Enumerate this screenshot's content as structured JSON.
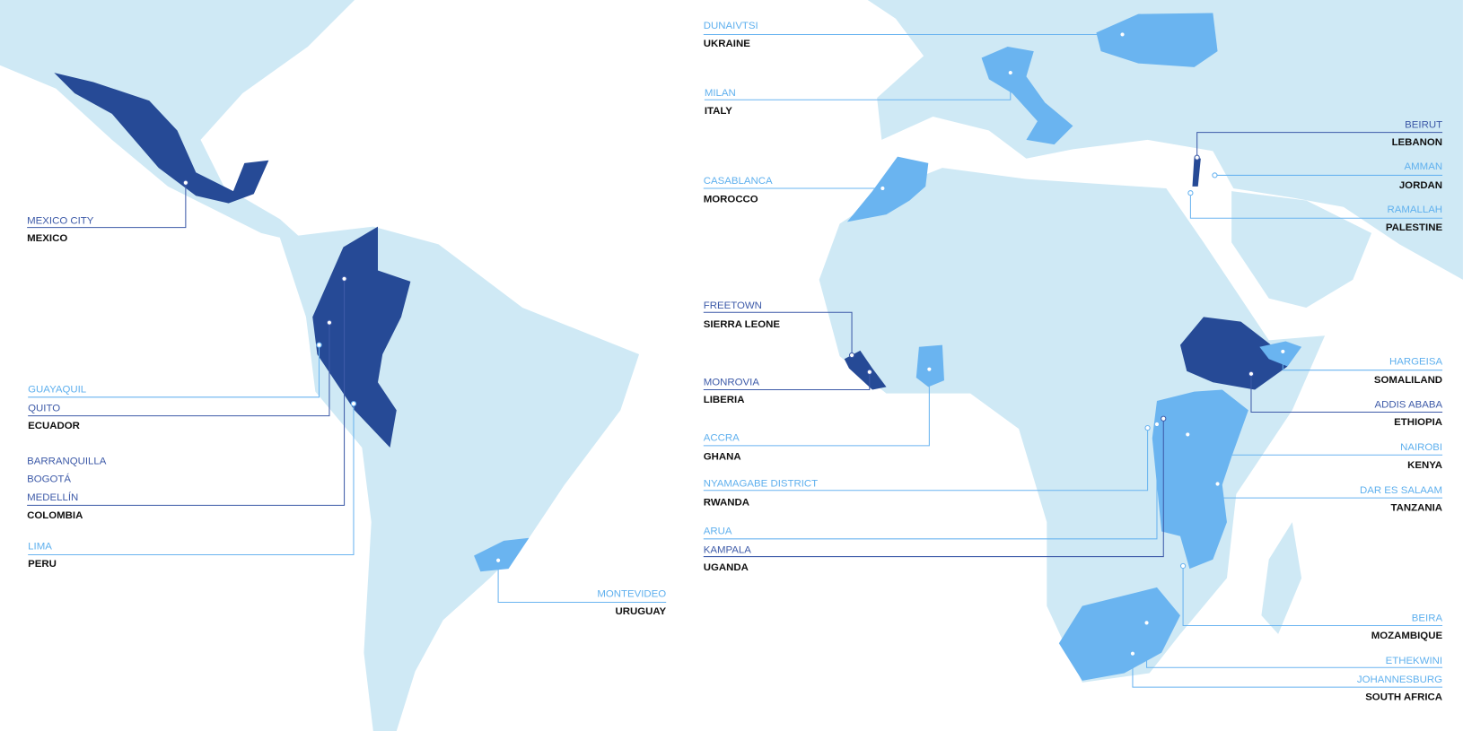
{
  "regions": [
    {
      "cities": [
        "MEXICO CITY"
      ],
      "country": "MEXICO"
    },
    {
      "cities": [
        "GUAYAQUIL",
        "QUITO"
      ],
      "country": "ECUADOR"
    },
    {
      "cities": [
        "BARRANQUILLA",
        "BOGOTÁ",
        "MEDELLÍN"
      ],
      "country": "COLOMBIA"
    },
    {
      "cities": [
        "LIMA"
      ],
      "country": "PERU"
    },
    {
      "cities": [
        "MONTEVIDEO"
      ],
      "country": "URUGUAY"
    },
    {
      "cities": [
        "DUNAIVTSI"
      ],
      "country": "UKRAINE"
    },
    {
      "cities": [
        "MILAN"
      ],
      "country": "ITALY"
    },
    {
      "cities": [
        "CASABLANCA"
      ],
      "country": "MOROCCO"
    },
    {
      "cities": [
        "BEIRUT"
      ],
      "country": "LEBANON"
    },
    {
      "cities": [
        "AMMAN"
      ],
      "country": "JORDAN"
    },
    {
      "cities": [
        "RAMALLAH"
      ],
      "country": "PALESTINE"
    },
    {
      "cities": [
        "FREETOWN"
      ],
      "country": "SIERRA LEONE"
    },
    {
      "cities": [
        "MONROVIA"
      ],
      "country": "LIBERIA"
    },
    {
      "cities": [
        "ACCRA"
      ],
      "country": "GHANA"
    },
    {
      "cities": [
        "HARGEISA"
      ],
      "country": "SOMALILAND"
    },
    {
      "cities": [
        "ADDIS ABABA"
      ],
      "country": "ETHIOPIA"
    },
    {
      "cities": [
        "NAIROBI"
      ],
      "country": "KENYA"
    },
    {
      "cities": [
        "DAR ES SALAAM"
      ],
      "country": "TANZANIA"
    },
    {
      "cities": [
        "NYAMAGABE DISTRICT"
      ],
      "country": "RWANDA"
    },
    {
      "cities": [
        "ARUA",
        "KAMPALA"
      ],
      "country": "UGANDA"
    },
    {
      "cities": [
        "BEIRA"
      ],
      "country": "MOZAMBIQUE"
    },
    {
      "cities": [
        "ETHEKWINI",
        "JOHANNESBURG"
      ],
      "country": "SOUTH AFRICA"
    }
  ]
}
